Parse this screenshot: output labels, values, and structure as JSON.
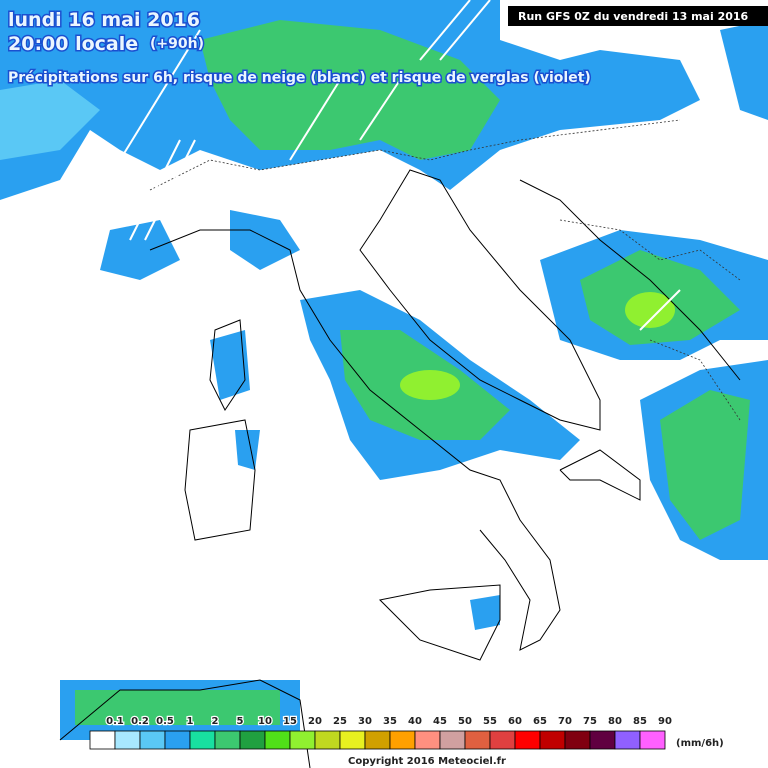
{
  "header": {
    "date": "lundi 16 mai 2016",
    "time": "20:00 locale",
    "lead": "(+90h)",
    "subtitle": "Précipitations sur 6h, risque de neige (blanc) et risque de verglas (violet)",
    "run": "Run GFS 0Z du vendredi 13 mai 2016"
  },
  "legend": {
    "labels": [
      "0.1",
      "0.2",
      "0.5",
      "1",
      "2",
      "5",
      "10",
      "15",
      "20",
      "25",
      "30",
      "35",
      "40",
      "45",
      "50",
      "55",
      "60",
      "65",
      "70",
      "75",
      "80",
      "85",
      "90"
    ],
    "colors": [
      "#ffffff",
      "#a8e8ff",
      "#5ac8f5",
      "#2aa0f0",
      "#18e0a0",
      "#3cc870",
      "#20a040",
      "#50e018",
      "#90f030",
      "#c0d820",
      "#e8f020",
      "#d0a000",
      "#ffa000",
      "#ff9080",
      "#d0a0a0",
      "#e06040",
      "#e04040",
      "#ff0000",
      "#c00000",
      "#800010",
      "#600040",
      "#9060ff",
      "#ff60ff"
    ],
    "unit": "(mm/6h)"
  },
  "footer": {
    "copyright": "Copyright 2016 Meteociel.fr"
  }
}
